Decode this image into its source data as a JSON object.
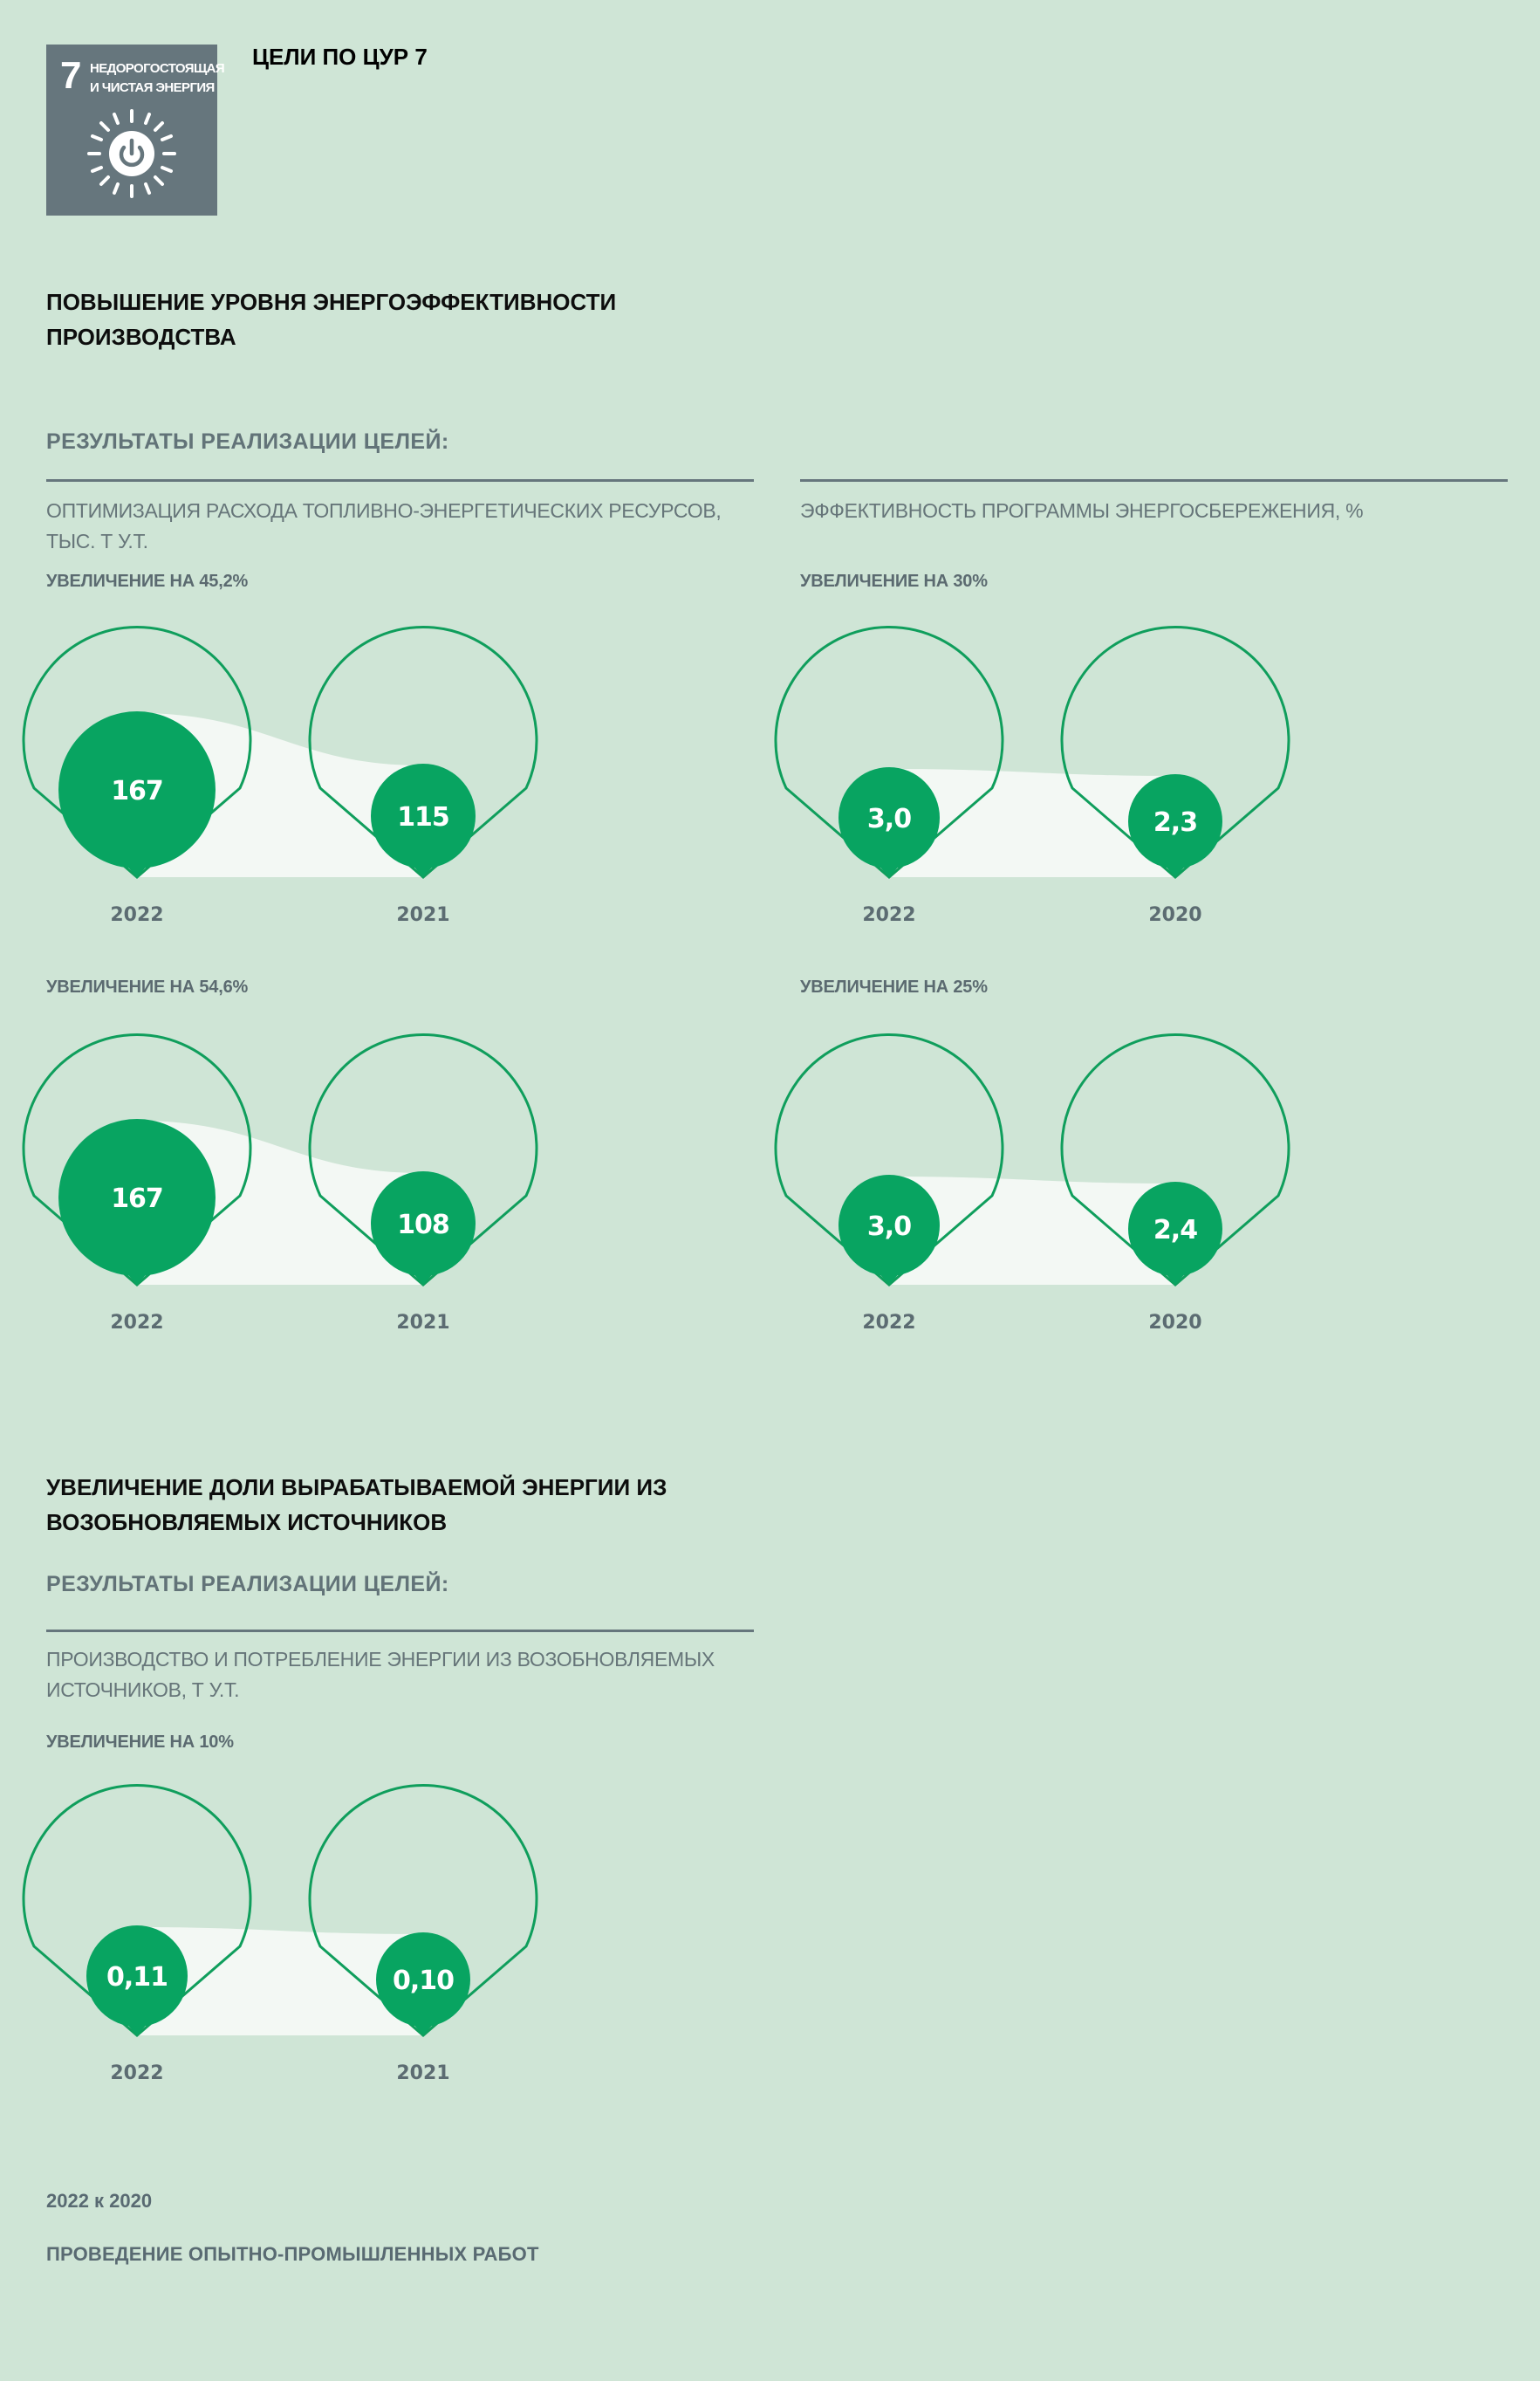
{
  "sdg": {
    "number": "7",
    "name_line1": "НЕДОРОГОСТОЯЩАЯ",
    "name_line2": "И ЧИСТАЯ ЭНЕРГИЯ",
    "title": "ЦЕЛИ ПО ЦУР 7"
  },
  "section1": {
    "heading_line1": "ПОВЫШЕНИЕ УРОВНЯ ЭНЕРГОЭФФЕКТИВНОСТИ",
    "heading_line2": "ПРОИЗВОДСТВА",
    "results_label": "РЕЗУЛЬТАТЫ РЕАЛИЗАЦИИ ЦЕЛЕЙ:",
    "left_metric_line1": "ОПТИМИЗАЦИЯ РАСХОДА ТОПЛИВНО-ЭНЕРГЕТИЧЕСКИХ РЕСУРСОВ,",
    "left_metric_line2": "ТЫС. Т У.Т.",
    "right_metric": "ЭФФЕКТИВНОСТЬ ПРОГРАММЫ ЭНЕРГОСБЕРЕЖЕНИЯ, %"
  },
  "section2": {
    "heading_line1": "УВЕЛИЧЕНИЕ ДОЛИ ВЫРАБАТЫВАЕМОЙ ЭНЕРГИИ ИЗ",
    "heading_line2": "ВОЗОБНОВЛЯЕМЫХ ИСТОЧНИКОВ",
    "results_label": "РЕЗУЛЬТАТЫ РЕАЛИЗАЦИИ ЦЕЛЕЙ:",
    "metric_line1": "ПРОИЗВОДСТВО И ПОТРЕБЛЕНИЕ ЭНЕРГИИ ИЗ ВОЗОБНОВЛЯЕМЫХ",
    "metric_line2": "ИСТОЧНИКОВ, Т У.Т."
  },
  "footer": {
    "period": "2022 к 2020",
    "note": "ПРОВЕДЕНИЕ ОПЫТНО-ПРОМЫШЛЕННЫХ РАБОТ"
  },
  "colors": {
    "background": "#cfe5d6",
    "accent_green": "#08a461",
    "ring_green": "#0f9e5c",
    "area_fill": "#f3f8f4",
    "year_text": "#5c6c72"
  },
  "chart_data": [
    {
      "type": "bar",
      "increase_label": "УВЕЛИЧЕНИЕ НА 45,2%",
      "categories": [
        "2022",
        "2021"
      ],
      "values": [
        167,
        115
      ],
      "value_labels": [
        "167",
        "115"
      ]
    },
    {
      "type": "bar",
      "increase_label": "УВЕЛИЧЕНИЕ НА 30%",
      "categories": [
        "2022",
        "2020"
      ],
      "values": [
        3.0,
        2.3
      ],
      "value_labels": [
        "3,0",
        "2,3"
      ]
    },
    {
      "type": "bar",
      "increase_label": "УВЕЛИЧЕНИЕ НА 54,6%",
      "categories": [
        "2022",
        "2021"
      ],
      "values": [
        167,
        108
      ],
      "value_labels": [
        "167",
        "108"
      ]
    },
    {
      "type": "bar",
      "increase_label": "УВЕЛИЧЕНИЕ НА 25%",
      "categories": [
        "2022",
        "2020"
      ],
      "values": [
        3.0,
        2.4
      ],
      "value_labels": [
        "3,0",
        "2,4"
      ]
    },
    {
      "type": "bar",
      "increase_label": "УВЕЛИЧЕНИЕ НА 10%",
      "categories": [
        "2022",
        "2021"
      ],
      "values": [
        0.11,
        0.1
      ],
      "value_labels": [
        "0,11",
        "0,10"
      ]
    }
  ]
}
